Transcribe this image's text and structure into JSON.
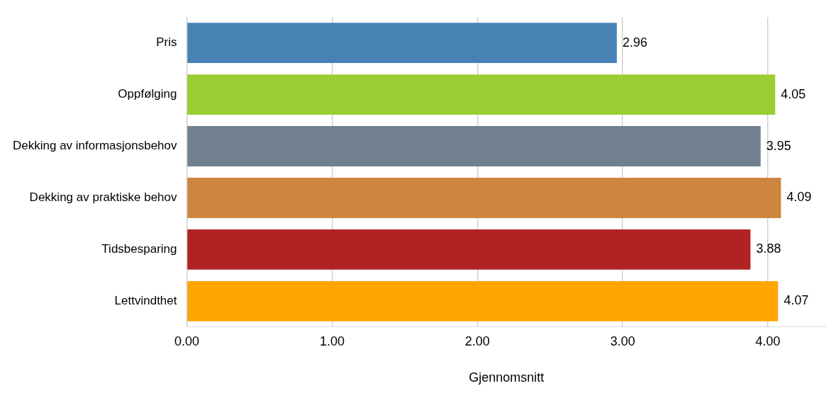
{
  "chart_data": {
    "type": "bar",
    "orientation": "horizontal",
    "xlabel": "Gjennomsnitt",
    "categories": [
      "Pris",
      "Oppfølging",
      "Dekking av informasjonsbehov",
      "Dekking av praktiske behov",
      "Tidsbesparing",
      "Lettvindthet"
    ],
    "values": [
      2.96,
      4.05,
      3.95,
      4.09,
      3.88,
      4.07
    ],
    "colors": [
      "#4682b4",
      "#9acd32",
      "#708090",
      "#cd853f",
      "#b22222",
      "#ffa500"
    ],
    "xlim": [
      0,
      4.4
    ],
    "xticks": [
      {
        "value": 0,
        "label": "0.00"
      },
      {
        "value": 1,
        "label": "1.00"
      },
      {
        "value": 2,
        "label": "2.00"
      },
      {
        "value": 3,
        "label": "3.00"
      },
      {
        "value": 4,
        "label": "4.00"
      }
    ],
    "grid": "x",
    "legend": false,
    "data_labels": true
  }
}
